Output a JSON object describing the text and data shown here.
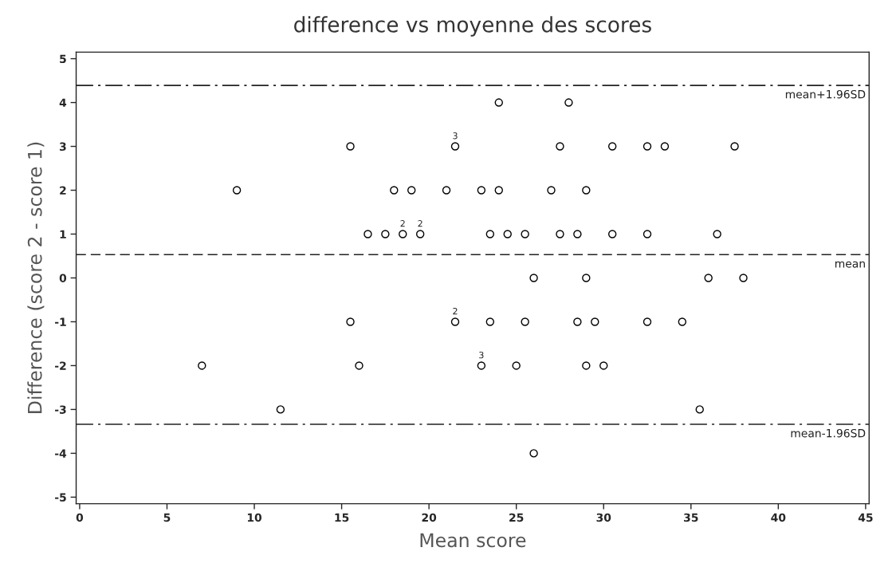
{
  "chart_data": {
    "type": "scatter",
    "title": "difference vs moyenne des scores",
    "xlabel": "Mean score",
    "ylabel": "Difference (score 2 - score 1)",
    "x": [
      24,
      28,
      15.5,
      21.5,
      27.5,
      30.5,
      32.5,
      33.5,
      37.5,
      9,
      18,
      19,
      21,
      23,
      24,
      27,
      29,
      16.5,
      17.5,
      18.5,
      19.5,
      23.5,
      24.5,
      25.5,
      27.5,
      28.5,
      30.5,
      32.5,
      36.5,
      26,
      29,
      36,
      38,
      15.5,
      21.5,
      23.5,
      25.5,
      28.5,
      29.5,
      32.5,
      34.5,
      7,
      16,
      23,
      25,
      29,
      30,
      11.5,
      35.5,
      26
    ],
    "series": [
      {
        "color": "#000000",
        "values": [
          4,
          4,
          3,
          3,
          3,
          3,
          3,
          3,
          3,
          2,
          2,
          2,
          2,
          2,
          2,
          2,
          2,
          1,
          1,
          1,
          1,
          1,
          1,
          1,
          1,
          1,
          1,
          1,
          1,
          0,
          0,
          0,
          0,
          -1,
          -1,
          -1,
          -1,
          -1,
          -1,
          -1,
          -1,
          -2,
          -2,
          -2,
          -2,
          -2,
          -2,
          -3,
          -3,
          -4
        ]
      }
    ],
    "marker": "circle",
    "xlim": [
      -0.2,
      45.2
    ],
    "xticks": [
      0,
      5,
      10,
      15,
      20,
      25,
      30,
      35,
      40,
      45
    ],
    "ylim": [
      -5.15,
      5.15
    ],
    "yticks": [
      -5,
      -4,
      -3,
      -2,
      -1,
      0,
      1,
      2,
      3,
      4,
      5
    ],
    "grid": false,
    "legend": false,
    "ref_lines": [
      {
        "axis": "y",
        "value": 4.39,
        "label": "mean+1.96SD",
        "line_style": "dashdot"
      },
      {
        "axis": "y",
        "value": 0.53,
        "label": "mean",
        "line_style": "dashed"
      },
      {
        "axis": "y",
        "value": -3.34,
        "label": "mean-1.96SD",
        "line_style": "dashdot"
      }
    ],
    "annotations": [
      {
        "text": "3",
        "x": 21.5,
        "y": 3
      },
      {
        "text": "2",
        "x": 18.5,
        "y": 1
      },
      {
        "text": "2",
        "x": 19.5,
        "y": 1
      },
      {
        "text": "2",
        "x": 21.5,
        "y": -1
      },
      {
        "text": "3",
        "x": 23,
        "y": -2
      }
    ]
  }
}
